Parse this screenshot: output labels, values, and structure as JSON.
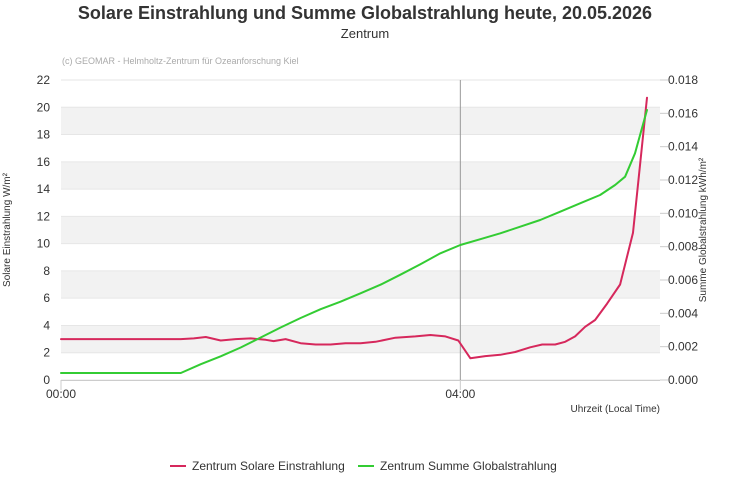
{
  "chart_data": {
    "type": "line",
    "title": "Solare Einstrahlung und Summe Globalstrahlung heute, 20.05.2026",
    "subtitle": "Zentrum",
    "credit": "(c) GEOMAR - Helmholtz-Zentrum für Ozeanforschung Kiel",
    "xlabel": "Uhrzeit (Local Time)",
    "ylabel_left": "Solare Einstrahlung W/m²",
    "ylabel_right": "Summe Globalstrahlung kWh/m²",
    "x_ticks": [
      "00:00",
      "04:00"
    ],
    "y_left_ticks": [
      "0",
      "2",
      "4",
      "6",
      "8",
      "10",
      "12",
      "14",
      "16",
      "18",
      "20",
      "22"
    ],
    "y_right_ticks": [
      "0.000",
      "0.002",
      "0.004",
      "0.006",
      "0.008",
      "0.010",
      "0.012",
      "0.014",
      "0.016",
      "0.018"
    ],
    "ylim_left": [
      0,
      22
    ],
    "ylim_right": [
      0,
      0.018
    ],
    "xlim_hours": [
      0,
      6
    ],
    "grid": true,
    "legend_position": "bottom-center",
    "colors": {
      "einstrahlung": "#d6285c",
      "summe": "#33cc33",
      "band": "#f2f2f2",
      "grid": "#e6e6e6",
      "marker_line": "#999999"
    },
    "series": [
      {
        "name": "Zentrum Solare Einstrahlung",
        "axis": "left",
        "x_hours": [
          0,
          0.5,
          1.2,
          1.33,
          1.45,
          1.6,
          1.75,
          1.9,
          2.05,
          2.13,
          2.25,
          2.4,
          2.55,
          2.7,
          2.85,
          3.0,
          3.15,
          3.35,
          3.55,
          3.7,
          3.85,
          3.98,
          4.1,
          4.25,
          4.4,
          4.55,
          4.7,
          4.82,
          4.95,
          5.05,
          5.15,
          5.25,
          5.35,
          5.47,
          5.6,
          5.73,
          5.87
        ],
        "values": [
          3.0,
          3.0,
          3.0,
          3.05,
          3.15,
          2.9,
          3.0,
          3.05,
          2.95,
          2.85,
          3.0,
          2.7,
          2.6,
          2.6,
          2.7,
          2.7,
          2.8,
          3.1,
          3.2,
          3.3,
          3.2,
          2.9,
          1.6,
          1.75,
          1.85,
          2.05,
          2.4,
          2.6,
          2.6,
          2.8,
          3.2,
          3.9,
          4.4,
          5.6,
          7.0,
          10.8,
          20.7
        ]
      },
      {
        "name": "Zentrum Summe Globalstrahlung",
        "axis": "right",
        "x_hours": [
          0,
          0.5,
          1.2,
          1.4,
          1.6,
          1.8,
          2.0,
          2.2,
          2.4,
          2.6,
          2.8,
          3.0,
          3.2,
          3.4,
          3.6,
          3.8,
          4.0,
          4.2,
          4.4,
          4.6,
          4.8,
          5.0,
          5.2,
          5.4,
          5.55,
          5.65,
          5.75,
          5.87
        ],
        "values": [
          0.00042,
          0.00042,
          0.00042,
          0.00095,
          0.00142,
          0.00195,
          0.00255,
          0.00315,
          0.00372,
          0.00425,
          0.0047,
          0.0052,
          0.00572,
          0.00632,
          0.00695,
          0.0076,
          0.0081,
          0.00845,
          0.0088,
          0.0092,
          0.0096,
          0.0101,
          0.0106,
          0.0111,
          0.0117,
          0.0122,
          0.0136,
          0.0162
        ]
      }
    ],
    "marker_line_x_hours": 4.0
  }
}
